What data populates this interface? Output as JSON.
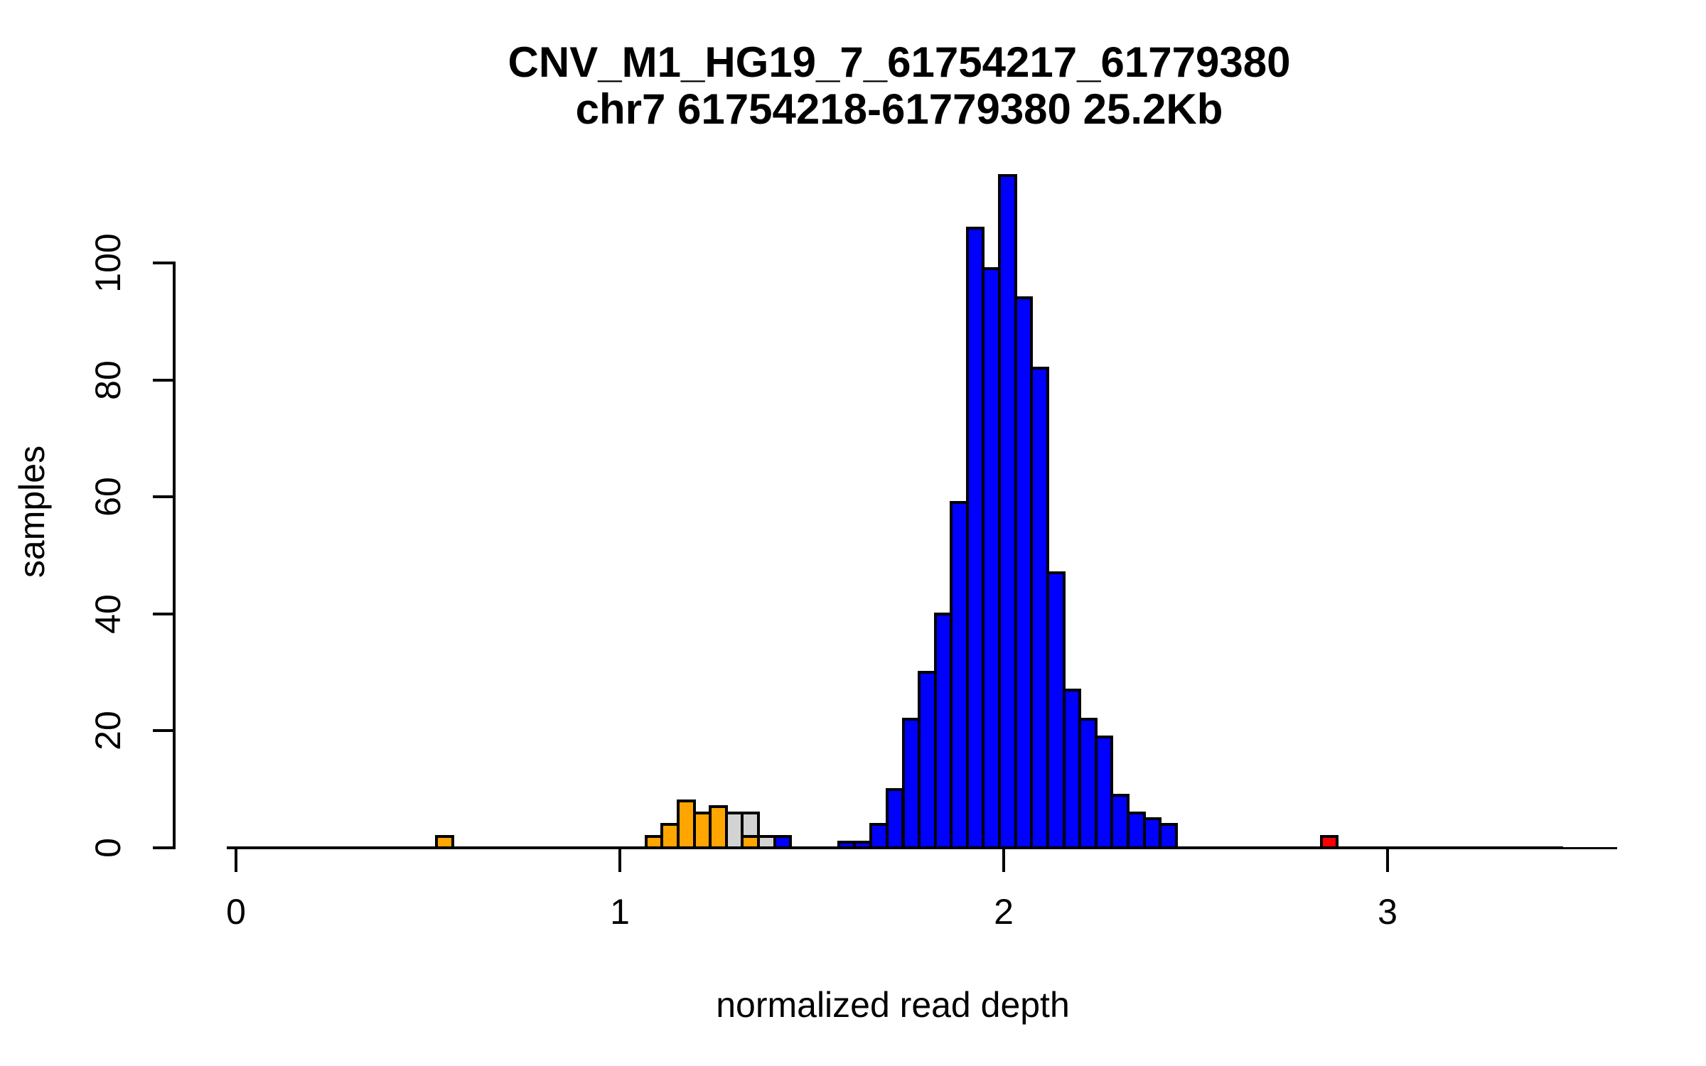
{
  "chart_data": {
    "type": "bar",
    "variant": "histogram",
    "title_line1": "CNV_M1_HG19_7_61754217_61779380",
    "title_line2": "chr7 61754218-61779380 25.2Kb",
    "xlabel": "normalized read depth",
    "ylabel": "samples",
    "x_ticks": [
      0,
      1,
      2,
      3
    ],
    "y_ticks": [
      0,
      20,
      40,
      60,
      80,
      100
    ],
    "xlim": [
      -0.024,
      3.6
    ],
    "ylim": [
      0,
      115
    ],
    "bin_width": 0.0419,
    "grid": false,
    "legend": false,
    "colors": {
      "orange": "#FFA500",
      "gray": "#D3D3D3",
      "blue": "#0000FF",
      "red": "#FF0000",
      "border": "#000000"
    },
    "baseline_zero_bins": {
      "x_start": 0.0,
      "x_end": 3.458
    },
    "axis_line_extent": {
      "x_start": -0.024,
      "x_end": 3.598
    },
    "bars": [
      {
        "x": 0.523,
        "count": 2,
        "color": "orange"
      },
      {
        "x": 1.068,
        "count": 2,
        "color": "orange"
      },
      {
        "x": 1.11,
        "count": 4,
        "color": "orange"
      },
      {
        "x": 1.152,
        "count": 8,
        "color": "orange"
      },
      {
        "x": 1.194,
        "count": 6,
        "color": "orange"
      },
      {
        "x": 1.235,
        "count": 7,
        "color": "orange"
      },
      {
        "x": 1.277,
        "count": 6,
        "color": "gray"
      },
      {
        "x": 1.319,
        "count": 6,
        "color": "gray"
      },
      {
        "x": 1.361,
        "count": 2,
        "color": "gray"
      },
      {
        "x": 1.319,
        "count": 2,
        "color": "orange"
      },
      {
        "x": 1.403,
        "count": 2,
        "color": "blue"
      },
      {
        "x": 1.57,
        "count": 1,
        "color": "blue"
      },
      {
        "x": 1.612,
        "count": 1,
        "color": "blue"
      },
      {
        "x": 1.654,
        "count": 4,
        "color": "blue"
      },
      {
        "x": 1.696,
        "count": 10,
        "color": "blue"
      },
      {
        "x": 1.738,
        "count": 22,
        "color": "blue"
      },
      {
        "x": 1.78,
        "count": 30,
        "color": "blue"
      },
      {
        "x": 1.822,
        "count": 40,
        "color": "blue"
      },
      {
        "x": 1.863,
        "count": 59,
        "color": "blue"
      },
      {
        "x": 1.905,
        "count": 106,
        "color": "blue"
      },
      {
        "x": 1.947,
        "count": 99,
        "color": "blue"
      },
      {
        "x": 1.989,
        "count": 115,
        "color": "blue"
      },
      {
        "x": 2.031,
        "count": 94,
        "color": "blue"
      },
      {
        "x": 2.073,
        "count": 82,
        "color": "blue"
      },
      {
        "x": 2.115,
        "count": 47,
        "color": "blue"
      },
      {
        "x": 2.157,
        "count": 27,
        "color": "blue"
      },
      {
        "x": 2.199,
        "count": 22,
        "color": "blue"
      },
      {
        "x": 2.24,
        "count": 19,
        "color": "blue"
      },
      {
        "x": 2.282,
        "count": 9,
        "color": "blue"
      },
      {
        "x": 2.324,
        "count": 6,
        "color": "blue"
      },
      {
        "x": 2.366,
        "count": 5,
        "color": "blue"
      },
      {
        "x": 2.408,
        "count": 4,
        "color": "blue"
      },
      {
        "x": 2.827,
        "count": 2,
        "color": "red"
      }
    ]
  }
}
